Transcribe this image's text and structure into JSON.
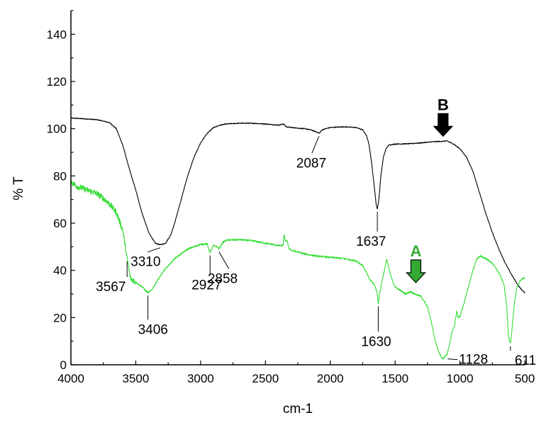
{
  "chart_data": {
    "type": "line",
    "xlabel": "cm-1",
    "ylabel": "% T",
    "xlim": [
      4000,
      500
    ],
    "ylim": [
      0,
      150
    ],
    "x_reversed": true,
    "x_ticks": [
      4000,
      3500,
      3000,
      2500,
      2000,
      1500,
      1000,
      500
    ],
    "y_ticks": [
      0,
      20,
      40,
      60,
      80,
      100,
      120,
      140
    ],
    "grid": false,
    "legend": "none",
    "series": [
      {
        "color": "#000000",
        "noise": 0.35,
        "points": [
          [
            4000,
            104.5
          ],
          [
            3900,
            104.2
          ],
          [
            3800,
            103.8
          ],
          [
            3750,
            103.2
          ],
          [
            3700,
            102.5
          ],
          [
            3650,
            100
          ],
          [
            3600,
            93
          ],
          [
            3550,
            83
          ],
          [
            3500,
            74
          ],
          [
            3450,
            64
          ],
          [
            3400,
            56
          ],
          [
            3350,
            51.5
          ],
          [
            3310,
            50.8
          ],
          [
            3270,
            51.5
          ],
          [
            3230,
            55
          ],
          [
            3200,
            60
          ],
          [
            3150,
            70
          ],
          [
            3100,
            80
          ],
          [
            3050,
            88
          ],
          [
            3000,
            94
          ],
          [
            2950,
            98
          ],
          [
            2900,
            100.5
          ],
          [
            2850,
            101.5
          ],
          [
            2800,
            102
          ],
          [
            2700,
            102.3
          ],
          [
            2600,
            102.3
          ],
          [
            2500,
            102
          ],
          [
            2400,
            101.5
          ],
          [
            2360,
            102
          ],
          [
            2340,
            100.8
          ],
          [
            2300,
            100.5
          ],
          [
            2200,
            100
          ],
          [
            2150,
            99.5
          ],
          [
            2100,
            98.5
          ],
          [
            2087,
            98
          ],
          [
            2060,
            99.6
          ],
          [
            2000,
            100.5
          ],
          [
            1900,
            100.8
          ],
          [
            1800,
            100.5
          ],
          [
            1750,
            99.5
          ],
          [
            1720,
            97
          ],
          [
            1700,
            93
          ],
          [
            1680,
            85
          ],
          [
            1660,
            75
          ],
          [
            1645,
            67.5
          ],
          [
            1637,
            66
          ],
          [
            1625,
            70
          ],
          [
            1610,
            80
          ],
          [
            1590,
            88
          ],
          [
            1570,
            91.5
          ],
          [
            1550,
            93
          ],
          [
            1500,
            93.5
          ],
          [
            1400,
            93.6
          ],
          [
            1300,
            94
          ],
          [
            1200,
            94.5
          ],
          [
            1150,
            94.6
          ],
          [
            1100,
            94.8
          ],
          [
            1050,
            93.5
          ],
          [
            1000,
            91.5
          ],
          [
            950,
            88
          ],
          [
            900,
            82
          ],
          [
            850,
            73
          ],
          [
            800,
            64
          ],
          [
            750,
            56
          ],
          [
            700,
            49
          ],
          [
            650,
            43
          ],
          [
            600,
            38
          ],
          [
            550,
            33.5
          ],
          [
            520,
            31.5
          ],
          [
            500,
            30.5
          ]
        ]
      },
      {
        "color": "#33dd33",
        "noise": 0.7,
        "noisy_until": 3500,
        "noise_big": 2.6,
        "points": [
          [
            4000,
            77.5
          ],
          [
            3950,
            75.5
          ],
          [
            3900,
            74.5
          ],
          [
            3850,
            73.5
          ],
          [
            3800,
            72.5
          ],
          [
            3750,
            70.5
          ],
          [
            3700,
            68
          ],
          [
            3650,
            64.5
          ],
          [
            3600,
            57
          ],
          [
            3567,
            45
          ],
          [
            3540,
            36.5
          ],
          [
            3500,
            35
          ],
          [
            3450,
            33
          ],
          [
            3406,
            30.5
          ],
          [
            3380,
            31.5
          ],
          [
            3330,
            36
          ],
          [
            3280,
            40
          ],
          [
            3200,
            45
          ],
          [
            3100,
            49
          ],
          [
            3000,
            51
          ],
          [
            2950,
            51.2
          ],
          [
            2927,
            47.5
          ],
          [
            2900,
            50.5
          ],
          [
            2870,
            50
          ],
          [
            2858,
            49
          ],
          [
            2830,
            51.8
          ],
          [
            2800,
            52.8
          ],
          [
            2700,
            53
          ],
          [
            2600,
            52.5
          ],
          [
            2500,
            51.5
          ],
          [
            2400,
            50.5
          ],
          [
            2365,
            50.5
          ],
          [
            2355,
            55
          ],
          [
            2345,
            52
          ],
          [
            2335,
            53
          ],
          [
            2320,
            49.5
          ],
          [
            2300,
            48.5
          ],
          [
            2200,
            47
          ],
          [
            2100,
            46
          ],
          [
            2000,
            45.5
          ],
          [
            1900,
            45
          ],
          [
            1800,
            44
          ],
          [
            1750,
            42
          ],
          [
            1720,
            39
          ],
          [
            1700,
            36.5
          ],
          [
            1680,
            35
          ],
          [
            1660,
            34
          ],
          [
            1640,
            31
          ],
          [
            1630,
            26
          ],
          [
            1620,
            30
          ],
          [
            1600,
            36
          ],
          [
            1580,
            40.5
          ],
          [
            1565,
            45
          ],
          [
            1550,
            41
          ],
          [
            1530,
            37
          ],
          [
            1500,
            33
          ],
          [
            1460,
            31.5
          ],
          [
            1420,
            30
          ],
          [
            1380,
            31
          ],
          [
            1350,
            30
          ],
          [
            1300,
            29
          ],
          [
            1250,
            24.5
          ],
          [
            1220,
            18
          ],
          [
            1190,
            10
          ],
          [
            1160,
            5
          ],
          [
            1140,
            3
          ],
          [
            1128,
            2.8
          ],
          [
            1100,
            4.5
          ],
          [
            1080,
            8.5
          ],
          [
            1060,
            14
          ],
          [
            1040,
            17
          ],
          [
            1025,
            23
          ],
          [
            1015,
            20
          ],
          [
            1000,
            20.5
          ],
          [
            980,
            24
          ],
          [
            950,
            30
          ],
          [
            900,
            40
          ],
          [
            870,
            45
          ],
          [
            840,
            46
          ],
          [
            800,
            45
          ],
          [
            750,
            43
          ],
          [
            700,
            39
          ],
          [
            660,
            34
          ],
          [
            640,
            25
          ],
          [
            625,
            12
          ],
          [
            611,
            9
          ],
          [
            600,
            14
          ],
          [
            580,
            26
          ],
          [
            560,
            33
          ],
          [
            530,
            36
          ],
          [
            500,
            37
          ]
        ]
      }
    ],
    "annotations": [
      {
        "text": "3310",
        "series": 0,
        "x": 3310
      },
      {
        "text": "2087",
        "series": 0,
        "x": 2087
      },
      {
        "text": "1637",
        "series": 0,
        "x": 1637
      },
      {
        "text": "3567",
        "series": 1,
        "x": 3567
      },
      {
        "text": "3406",
        "series": 1,
        "x": 3406
      },
      {
        "text": "2927",
        "series": 1,
        "x": 2927
      },
      {
        "text": "2858",
        "series": 1,
        "x": 2858
      },
      {
        "text": "1630",
        "series": 1,
        "x": 1630
      },
      {
        "text": "1128",
        "series": 1,
        "x": 1128
      },
      {
        "text": "611",
        "series": 1,
        "x": 611
      }
    ],
    "markers": [
      {
        "text": "B",
        "text_color": "#000000",
        "fill": "#000000",
        "stroke": "#000000",
        "x": 1130,
        "y": 95
      },
      {
        "text": "A",
        "text_color": "#33aa33",
        "fill": "#33aa33",
        "stroke": "#000000",
        "x": 1340,
        "y": 33
      }
    ]
  }
}
